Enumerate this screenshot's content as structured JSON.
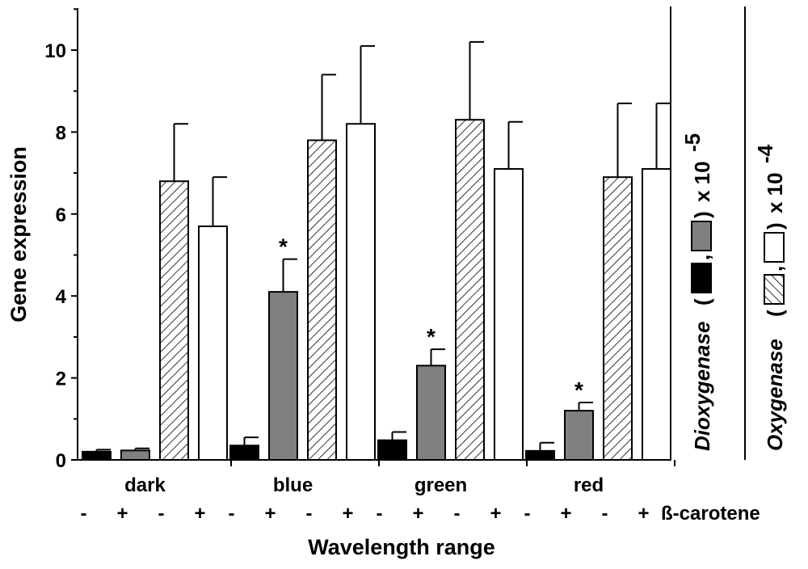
{
  "chart_data": {
    "type": "bar",
    "title": "",
    "xlabel": "Wavelength range",
    "ylabel": "Gene expression",
    "ylim": [
      0,
      11
    ],
    "yticks": [
      0,
      2,
      4,
      6,
      8,
      10
    ],
    "categories": [
      "dark",
      "blue",
      "green",
      "red"
    ],
    "treatment_label": "ß-carotene",
    "treatment_signs": [
      "-",
      "+",
      "-",
      "+"
    ],
    "series": [
      {
        "name": "Dioxygenase -",
        "gene": "Dioxygenase",
        "treatment": "-",
        "fill": "#000000",
        "pattern": "solid",
        "values": [
          0.2,
          0.35,
          0.48,
          0.22
        ],
        "errors": [
          0.05,
          0.2,
          0.2,
          0.2
        ],
        "significant": [
          false,
          false,
          false,
          false
        ]
      },
      {
        "name": "Dioxygenase +",
        "gene": "Dioxygenase",
        "treatment": "+",
        "fill": "#808080",
        "pattern": "solid",
        "values": [
          0.23,
          4.1,
          2.3,
          1.2
        ],
        "errors": [
          0.05,
          0.8,
          0.4,
          0.2
        ],
        "significant": [
          false,
          true,
          true,
          true
        ]
      },
      {
        "name": "Oxygenase -",
        "gene": "Oxygenase",
        "treatment": "-",
        "fill": "#ffffff",
        "pattern": "hatch",
        "values": [
          6.8,
          7.8,
          8.3,
          6.9
        ],
        "errors": [
          1.4,
          1.6,
          1.9,
          1.8
        ],
        "significant": [
          false,
          false,
          false,
          false
        ]
      },
      {
        "name": "Oxygenase +",
        "gene": "Oxygenase",
        "treatment": "+",
        "fill": "#ffffff",
        "pattern": "solid",
        "values": [
          5.7,
          8.2,
          7.1,
          7.1
        ],
        "errors": [
          1.2,
          1.9,
          1.15,
          1.6
        ],
        "significant": [
          false,
          false,
          false,
          false
        ]
      }
    ],
    "significance_marker": "*",
    "right_axes": [
      {
        "gene": "Dioxygenase",
        "open": "(",
        "sep": ",",
        "close": ")",
        "scale": "x 10",
        "exponent": "-5"
      },
      {
        "gene": "Oxygenase",
        "open": "(",
        "sep": ",",
        "close": ")",
        "scale": "x 10",
        "exponent": "-4"
      }
    ]
  }
}
